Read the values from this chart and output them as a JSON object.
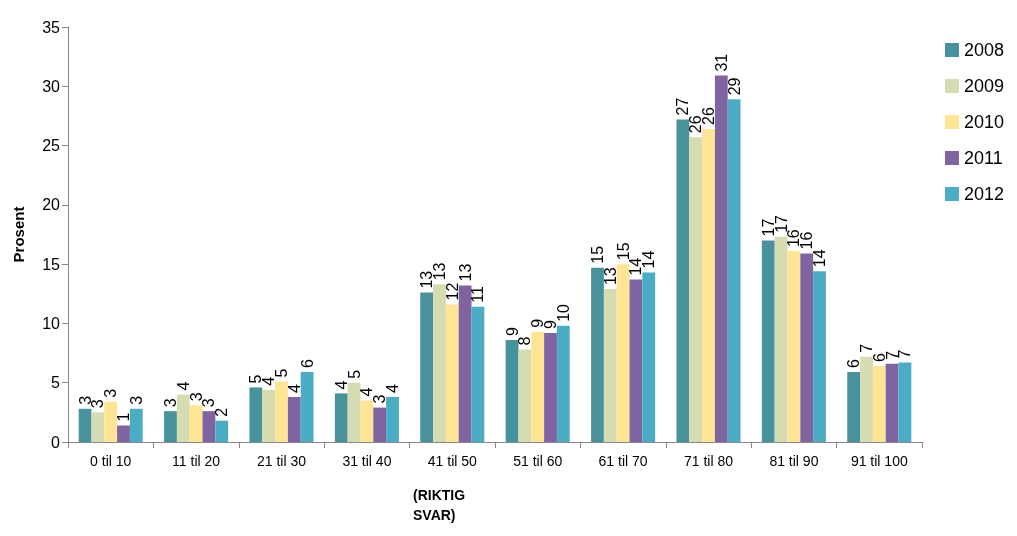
{
  "chart_data": {
    "type": "bar",
    "ylabel": "Prosent",
    "categories": [
      "0 til 10",
      "11 til 20",
      "21 til 30",
      "31 til 40",
      "41 til 50",
      "51 til 60",
      "61 til 70",
      "71 til 80",
      "81 til 90",
      "91 til 100"
    ],
    "series": [
      {
        "name": "2008",
        "color": "#47929b",
        "values": [
          2.8,
          2.6,
          4.6,
          4.1,
          12.6,
          8.6,
          14.7,
          27.2,
          17.0,
          5.9
        ],
        "value_labels": [
          "3",
          "3",
          "5",
          "4",
          "13",
          "9",
          "15",
          "27",
          "17",
          "6"
        ]
      },
      {
        "name": "2009",
        "color": "#d5dcb2",
        "values": [
          2.5,
          4.0,
          4.4,
          5.0,
          13.3,
          7.8,
          12.9,
          25.7,
          17.3,
          7.2
        ],
        "value_labels": [
          "3",
          "4",
          "4",
          "5",
          "13",
          "8",
          "13",
          "26",
          "17",
          "7"
        ]
      },
      {
        "name": "2010",
        "color": "#fee594",
        "values": [
          3.4,
          3.1,
          5.1,
          3.5,
          11.6,
          9.3,
          15.0,
          26.4,
          16.1,
          6.4
        ],
        "value_labels": [
          "3",
          "3",
          "5",
          "4",
          "12",
          "9",
          "15",
          "26",
          "16",
          "6"
        ]
      },
      {
        "name": "2011",
        "color": "#8064a2",
        "values": [
          1.4,
          2.6,
          3.8,
          2.9,
          13.2,
          9.2,
          13.7,
          30.9,
          15.9,
          6.6
        ],
        "value_labels": [
          "1",
          "3",
          "4",
          "3",
          "13",
          "9",
          "14",
          "31",
          "16",
          "7"
        ]
      },
      {
        "name": "2012",
        "color": "#4bacc6",
        "values": [
          2.8,
          1.8,
          5.9,
          3.8,
          11.4,
          9.8,
          14.3,
          28.9,
          14.4,
          6.7
        ],
        "value_labels": [
          "3",
          "2",
          "6",
          "4",
          "11",
          "10",
          "14",
          "29",
          "14",
          "7"
        ]
      }
    ],
    "ylim": [
      0,
      35
    ],
    "yticks": [
      0,
      5,
      10,
      15,
      20,
      25,
      30,
      35
    ],
    "grid": false,
    "legend": "right",
    "annotations": [
      "(RIKTIG SVAR)"
    ]
  }
}
